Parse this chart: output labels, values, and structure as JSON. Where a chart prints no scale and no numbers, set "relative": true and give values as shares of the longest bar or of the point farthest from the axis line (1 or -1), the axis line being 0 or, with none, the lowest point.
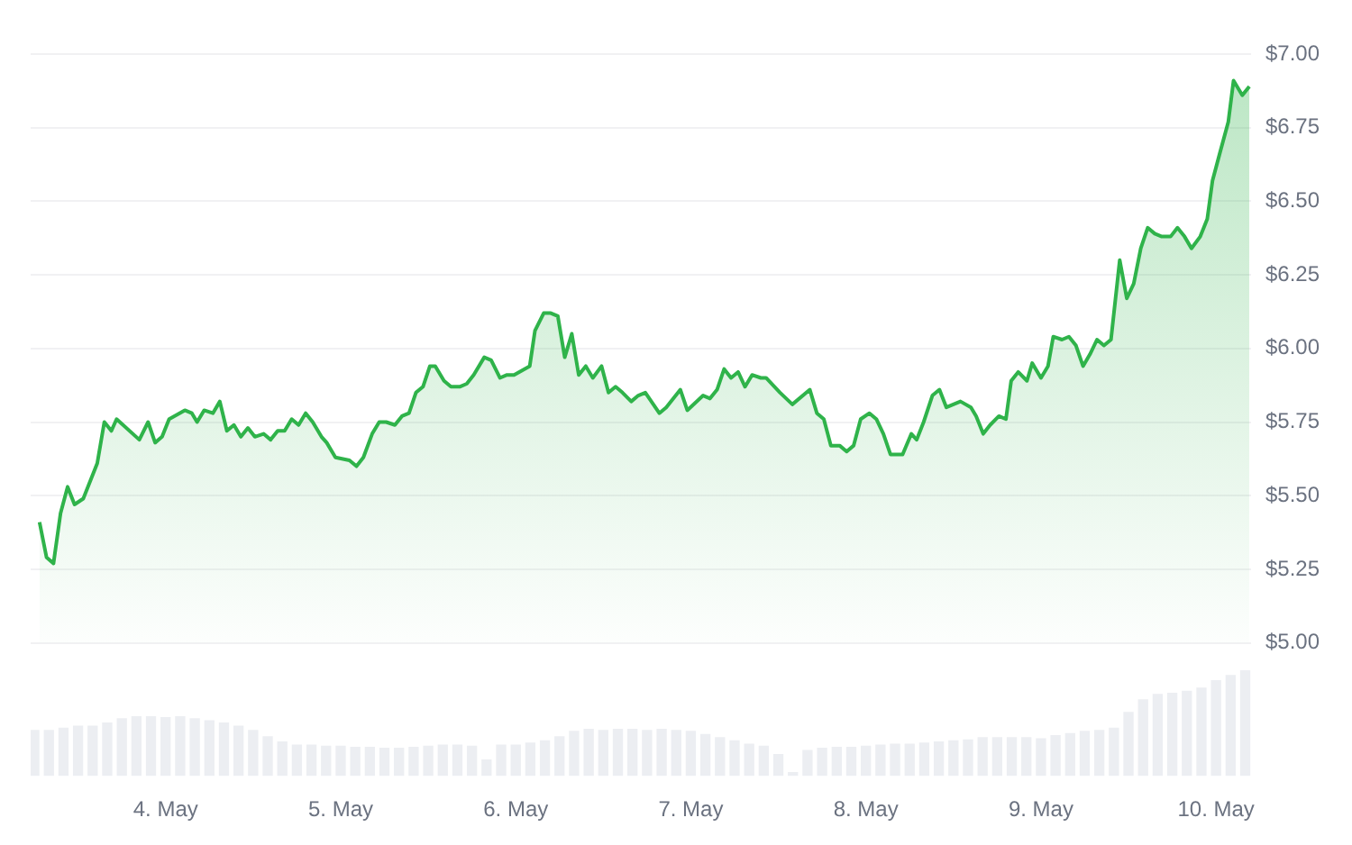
{
  "chart_data": [
    {
      "type": "area",
      "color": "#2fb34a",
      "x": [
        "--05-03T06:43",
        "--05-03T07:41",
        "--05-03T08:38",
        "--05-03T09:36",
        "--05-03T10:34",
        "--05-03T11:31",
        "--05-03T12:43",
        "--05-03T14:38",
        "--05-03T15:36",
        "--05-03T16:34",
        "--05-03T17:17",
        "--05-03T20:24",
        "--05-03T21:36",
        "--05-03T22:34",
        "--05-03T23:31",
        "--05-04T00:29",
        "--05-04T02:38",
        "--05-04T03:36",
        "--05-04T04:19",
        "--05-04T05:17",
        "--05-04T06:29",
        "--05-04T07:26",
        "--05-04T08:24",
        "--05-04T09:22",
        "--05-04T10:19",
        "--05-04T11:17",
        "--05-04T12:14",
        "--05-04T13:26",
        "--05-04T14:24",
        "--05-04T15:22",
        "--05-04T16:19",
        "--05-04T17:17",
        "--05-04T18:14",
        "--05-04T19:12",
        "--05-04T20:10",
        "--05-04T21:22",
        "--05-04T22:05",
        "--05-04T23:17",
        "--05-05T01:12",
        "--05-05T02:10",
        "--05-05T03:07",
        "--05-05T04:19",
        "--05-05T05:17",
        "--05-05T06:14",
        "--05-05T07:26",
        "--05-05T08:24",
        "--05-05T09:22",
        "--05-05T10:19",
        "--05-05T11:17",
        "--05-05T12:14",
        "--05-05T12:58",
        "--05-05T14:10",
        "--05-05T15:07",
        "--05-05T16:19",
        "--05-05T17:17",
        "--05-05T18:14",
        "--05-05T19:41",
        "--05-05T20:38",
        "--05-05T21:50",
        "--05-05T22:48",
        "--05-05T23:46",
        "--05-06T01:55",
        "--05-06T02:38",
        "--05-06T03:50",
        "--05-06T04:48",
        "--05-06T05:46",
        "--05-06T06:43",
        "--05-06T07:41",
        "--05-06T08:38",
        "--05-06T09:36",
        "--05-06T10:34",
        "--05-06T11:46",
        "--05-06T12:43",
        "--05-06T13:41",
        "--05-06T14:38",
        "--05-06T15:50",
        "--05-06T16:48",
        "--05-06T17:46",
        "--05-06T19:41",
        "--05-06T20:38",
        "--05-06T22:34",
        "--05-06T23:31",
        "--05-07T01:41",
        "--05-07T02:38",
        "--05-07T03:36",
        "--05-07T04:34",
        "--05-07T05:31",
        "--05-07T06:29",
        "--05-07T07:26",
        "--05-07T08:24",
        "--05-07T09:36",
        "--05-07T10:19",
        "--05-07T12:14",
        "--05-07T13:55",
        "--05-07T16:19",
        "--05-07T17:17",
        "--05-07T18:14",
        "--05-07T19:12",
        "--05-07T20:24",
        "--05-07T21:22",
        "--05-07T22:19",
        "--05-07T23:17",
        "--05-08T00:29",
        "--05-08T01:26",
        "--05-08T02:24",
        "--05-08T03:22",
        "--05-08T05:02",
        "--05-08T06:14",
        "--05-08T06:58",
        "--05-08T07:55",
        "--05-08T09:07",
        "--05-08T10:05",
        "--05-08T11:02",
        "--05-08T12:58",
        "--05-08T14:24",
        "--05-08T15:07",
        "--05-08T16:05",
        "--05-08T17:02",
        "--05-08T18:14",
        "--05-08T19:12",
        "--05-08T19:55",
        "--05-08T20:53",
        "--05-08T22:05",
        "--05-08T22:48",
        "--05-09T00:00",
        "--05-09T00:58",
        "--05-09T01:41",
        "--05-09T02:53",
        "--05-09T03:50",
        "--05-09T04:48",
        "--05-09T05:46",
        "--05-09T06:43",
        "--05-09T07:41",
        "--05-09T08:38",
        "--05-09T09:36",
        "--05-09T10:48",
        "--05-09T11:46",
        "--05-09T12:43",
        "--05-09T13:41",
        "--05-09T14:38",
        "--05-09T15:36",
        "--05-09T16:34",
        "--05-09T17:46",
        "--05-09T18:43",
        "--05-09T19:41",
        "--05-09T20:38",
        "--05-09T21:50",
        "--05-09T22:48",
        "--05-09T23:31",
        "--05-10T00:29",
        "--05-10T01:41",
        "--05-10T02:24",
        "--05-10T03:36",
        "--05-10T04:34"
      ],
      "values": [
        5.41,
        5.29,
        5.27,
        5.44,
        5.53,
        5.47,
        5.49,
        5.61,
        5.75,
        5.72,
        5.76,
        5.69,
        5.75,
        5.68,
        5.7,
        5.76,
        5.79,
        5.78,
        5.75,
        5.79,
        5.78,
        5.82,
        5.72,
        5.74,
        5.7,
        5.73,
        5.7,
        5.71,
        5.69,
        5.72,
        5.72,
        5.76,
        5.74,
        5.78,
        5.75,
        5.7,
        5.68,
        5.63,
        5.62,
        5.6,
        5.63,
        5.71,
        5.75,
        5.75,
        5.74,
        5.77,
        5.78,
        5.85,
        5.87,
        5.94,
        5.94,
        5.89,
        5.87,
        5.87,
        5.88,
        5.91,
        5.97,
        5.96,
        5.9,
        5.91,
        5.91,
        5.94,
        6.06,
        6.12,
        6.12,
        6.11,
        5.97,
        6.05,
        5.91,
        5.94,
        5.9,
        5.94,
        5.85,
        5.87,
        5.85,
        5.82,
        5.84,
        5.85,
        5.78,
        5.8,
        5.86,
        5.79,
        5.84,
        5.83,
        5.86,
        5.93,
        5.9,
        5.92,
        5.87,
        5.91,
        5.9,
        5.9,
        5.85,
        5.81,
        5.86,
        5.78,
        5.76,
        5.67,
        5.67,
        5.65,
        5.67,
        5.76,
        5.78,
        5.76,
        5.71,
        5.64,
        5.64,
        5.71,
        5.69,
        5.75,
        5.84,
        5.86,
        5.8,
        5.82,
        5.8,
        5.77,
        5.71,
        5.74,
        5.77,
        5.76,
        5.89,
        5.92,
        5.89,
        5.95,
        5.9,
        5.94,
        6.04,
        6.03,
        6.04,
        6.01,
        5.94,
        5.98,
        6.03,
        6.01,
        6.03,
        6.3,
        6.17,
        6.22,
        6.34,
        6.41,
        6.39,
        6.38,
        6.38,
        6.41,
        6.38,
        6.34,
        6.38,
        6.44,
        6.57,
        6.66,
        6.77,
        6.91,
        6.86,
        6.89
      ],
      "xlim": [
        "--05-03T05:30",
        "--05-10T04:48"
      ],
      "ylim": [
        5,
        7
      ],
      "yticks": [
        {
          "value": 5,
          "label": "$5.00"
        },
        {
          "value": 5.25,
          "label": "$5.25"
        },
        {
          "value": 5.5,
          "label": "$5.50"
        },
        {
          "value": 5.75,
          "label": "$5.75"
        },
        {
          "value": 6,
          "label": "$6.00"
        },
        {
          "value": 6.25,
          "label": "$6.25"
        },
        {
          "value": 6.5,
          "label": "$6.50"
        },
        {
          "value": 6.75,
          "label": "$6.75"
        },
        {
          "value": 7,
          "label": "$7.00"
        }
      ],
      "grid": "y",
      "tick_labels": "y",
      "legend": false
    },
    {
      "type": "bar",
      "relative": true,
      "color": "#eceef2",
      "x": [
        "--05-03T06:00",
        "--05-03T08:00",
        "--05-03T10:00",
        "--05-03T12:00",
        "--05-03T14:00",
        "--05-03T16:00",
        "--05-03T18:00",
        "--05-03T20:00",
        "--05-03T22:00",
        "--05-04T00:00",
        "--05-04T02:00",
        "--05-04T04:00",
        "--05-04T06:00",
        "--05-04T08:00",
        "--05-04T10:00",
        "--05-04T12:00",
        "--05-04T14:00",
        "--05-04T16:00",
        "--05-04T18:00",
        "--05-04T20:00",
        "--05-04T22:00",
        "--05-05T00:00",
        "--05-05T02:00",
        "--05-05T04:00",
        "--05-05T06:00",
        "--05-05T08:00",
        "--05-05T10:00",
        "--05-05T12:00",
        "--05-05T14:00",
        "--05-05T16:00",
        "--05-05T18:00",
        "--05-05T20:00",
        "--05-05T22:00",
        "--05-06T00:00",
        "--05-06T02:00",
        "--05-06T04:00",
        "--05-06T06:00",
        "--05-06T08:00",
        "--05-06T10:00",
        "--05-06T12:00",
        "--05-06T14:00",
        "--05-06T16:00",
        "--05-06T18:00",
        "--05-06T20:00",
        "--05-06T22:00",
        "--05-07T00:00",
        "--05-07T02:00",
        "--05-07T04:00",
        "--05-07T06:00",
        "--05-07T08:00",
        "--05-07T10:00",
        "--05-07T12:00",
        "--05-07T14:00",
        "--05-07T16:00",
        "--05-07T18:00",
        "--05-07T20:00",
        "--05-07T22:00",
        "--05-08T00:00",
        "--05-08T02:00",
        "--05-08T04:00",
        "--05-08T06:00",
        "--05-08T08:00",
        "--05-08T10:00",
        "--05-08T12:00",
        "--05-08T14:00",
        "--05-08T16:00",
        "--05-08T18:00",
        "--05-08T20:00",
        "--05-08T22:00",
        "--05-09T00:00",
        "--05-09T02:00",
        "--05-09T04:00",
        "--05-09T06:00",
        "--05-09T08:00",
        "--05-09T10:00",
        "--05-09T12:00",
        "--05-09T14:00",
        "--05-09T16:00",
        "--05-09T18:00",
        "--05-09T20:00",
        "--05-09T22:00",
        "--05-10T00:00",
        "--05-10T02:00",
        "--05-10T04:00"
      ],
      "values": [
        0.43,
        0.43,
        0.45,
        0.47,
        0.47,
        0.5,
        0.54,
        0.56,
        0.56,
        0.55,
        0.56,
        0.54,
        0.52,
        0.5,
        0.47,
        0.43,
        0.37,
        0.32,
        0.29,
        0.29,
        0.28,
        0.28,
        0.27,
        0.27,
        0.26,
        0.26,
        0.27,
        0.28,
        0.29,
        0.29,
        0.28,
        0.15,
        0.29,
        0.29,
        0.31,
        0.33,
        0.37,
        0.42,
        0.44,
        0.43,
        0.44,
        0.44,
        0.43,
        0.44,
        0.43,
        0.42,
        0.39,
        0.36,
        0.33,
        0.3,
        0.28,
        0.2,
        0.03,
        0.24,
        0.26,
        0.27,
        0.27,
        0.28,
        0.29,
        0.3,
        0.3,
        0.31,
        0.32,
        0.33,
        0.34,
        0.36,
        0.36,
        0.36,
        0.36,
        0.35,
        0.38,
        0.4,
        0.42,
        0.43,
        0.45,
        0.6,
        0.72,
        0.77,
        0.78,
        0.8,
        0.83,
        0.9,
        0.95,
        1.0
      ],
      "xlim": [
        "--05-03T05:30",
        "--05-10T04:48"
      ],
      "xticks": [
        {
          "value": "--05-04",
          "label": "4. May"
        },
        {
          "value": "--05-05",
          "label": "5. May"
        },
        {
          "value": "--05-06",
          "label": "6. May"
        },
        {
          "value": "--05-07",
          "label": "7. May"
        },
        {
          "value": "--05-08",
          "label": "8. May"
        },
        {
          "value": "--05-09",
          "label": "9. May"
        },
        {
          "value": "--05-10",
          "label": "10. May"
        }
      ],
      "tick_labels": "x",
      "grid": false,
      "legend": false
    }
  ]
}
